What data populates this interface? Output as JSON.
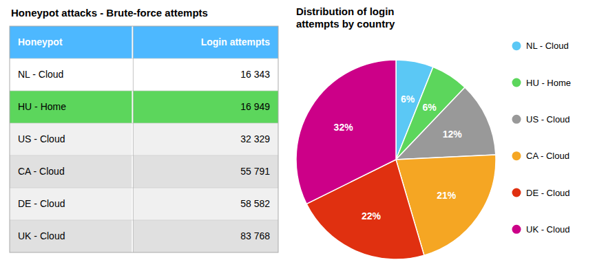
{
  "chart_data": [
    {
      "type": "table",
      "title": "Honeypot attacks - Brute-force attempts",
      "columns": [
        "Honeypot",
        "Login attempts"
      ],
      "rows": [
        [
          "NL - Cloud",
          "16 343"
        ],
        [
          "HU - Home",
          "16 949"
        ],
        [
          "US - Cloud",
          "32 329"
        ],
        [
          "CA - Cloud",
          "55 791"
        ],
        [
          "DE - Cloud",
          "58 582"
        ],
        [
          "UK - Cloud",
          "83 768"
        ]
      ],
      "color": "#4db8ff",
      "colors": [
        "#ffffff",
        "#5cd65c",
        "#f0f0f0",
        "#e0e0e0",
        "#f0f0f0",
        "#e0e0e0"
      ]
    },
    {
      "type": "pie",
      "title": "Distribution of login\nattempts by country",
      "categories": [
        "NL - Cloud",
        "HU - Home",
        "US - Cloud",
        "CA - Cloud",
        "DE - Cloud",
        "UK - Cloud"
      ],
      "values": [
        6,
        6,
        12,
        21,
        22,
        32
      ],
      "value_labels": [
        "6%",
        "6%",
        "12%",
        "21%",
        "22%",
        "32%"
      ],
      "colors": [
        "#5bc8f5",
        "#5cd65c",
        "#999999",
        "#f5a623",
        "#e03010",
        "#cc0088"
      ],
      "data_labels": true,
      "legend": "right"
    }
  ]
}
